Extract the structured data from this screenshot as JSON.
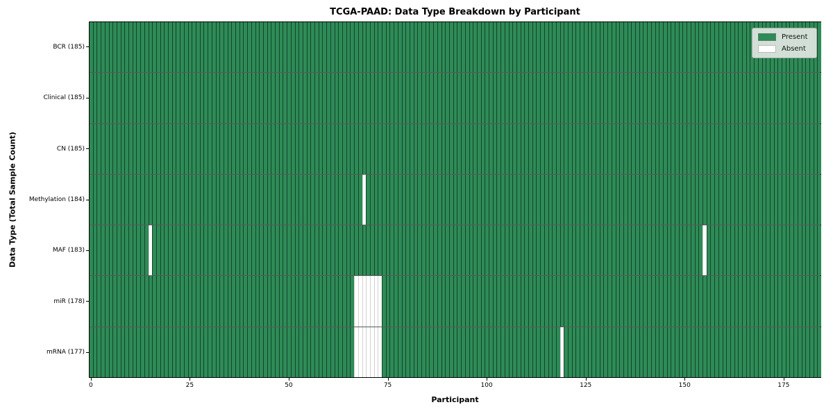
{
  "chart_data": {
    "type": "heatmap",
    "title": "TCGA-PAAD: Data Type Breakdown by Participant",
    "xlabel": "Participant",
    "ylabel": "Data Type (Total Sample Count)",
    "n_participants": 185,
    "x_range": [
      -0.5,
      185.5
    ],
    "x_ticks": [
      0,
      25,
      50,
      75,
      100,
      125,
      150,
      175
    ],
    "grid": "cell-edge-lines",
    "rows": [
      {
        "name": "BCR",
        "label": "BCR (185)",
        "total": 185,
        "absent_participants": []
      },
      {
        "name": "Clinical",
        "label": "Clinical (185)",
        "total": 185,
        "absent_participants": []
      },
      {
        "name": "CN",
        "label": "CN (185)",
        "total": 185,
        "absent_participants": []
      },
      {
        "name": "Methylation",
        "label": "Methylation (184)",
        "total": 184,
        "absent_participants": [
          69
        ]
      },
      {
        "name": "MAF",
        "label": "MAF (183)",
        "total": 183,
        "absent_participants": [
          15,
          155
        ]
      },
      {
        "name": "miR",
        "label": "miR (178)",
        "total": 178,
        "absent_participants": [
          67,
          68,
          69,
          70,
          71,
          72,
          73
        ]
      },
      {
        "name": "mRNA",
        "label": "mRNA (177)",
        "total": 177,
        "absent_participants": [
          67,
          68,
          69,
          70,
          71,
          72,
          73,
          119
        ]
      }
    ],
    "legend": {
      "position": "upper right",
      "entries": [
        {
          "label": "Present",
          "color": "#2E8B57"
        },
        {
          "label": "Absent",
          "color": "#FFFFFF"
        }
      ]
    },
    "colors": {
      "present": "#2E8B57",
      "absent": "#FFFFFF",
      "cell_edge": "rgba(5,25,15,0.62)",
      "row_separator": "rgba(0,0,0,0.65)",
      "spine": "#000000"
    }
  }
}
